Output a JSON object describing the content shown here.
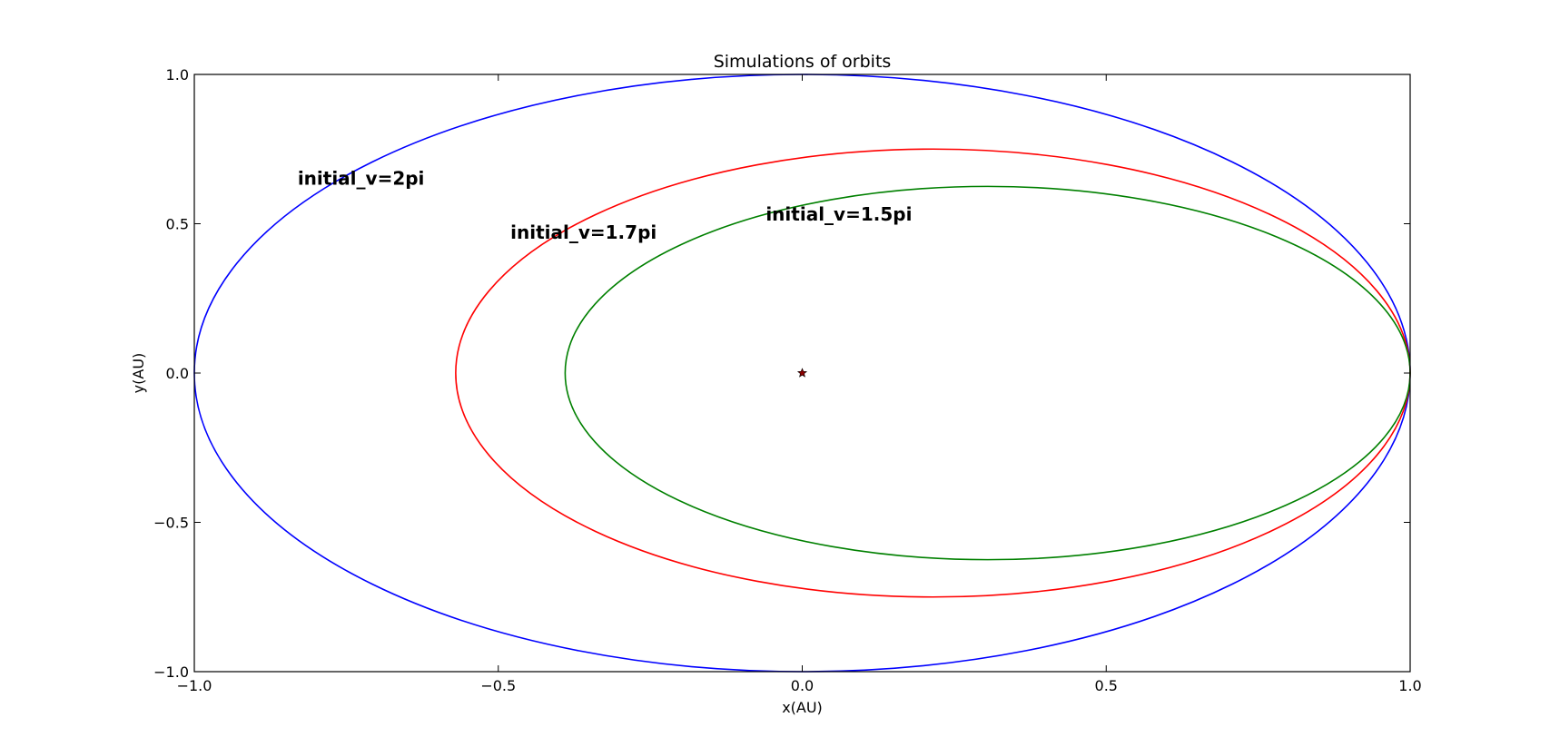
{
  "chart_data": {
    "type": "line",
    "title": "Simulations of orbits",
    "xlabel": "x(AU)",
    "ylabel": "y(AU)",
    "xlim": [
      -1.0,
      1.0
    ],
    "ylim": [
      -1.0,
      1.0
    ],
    "xticks": [
      -1.0,
      -0.5,
      0.0,
      0.5,
      1.0
    ],
    "xtick_labels": [
      "−1.0",
      "−0.5",
      "0.0",
      "0.5",
      "1.0"
    ],
    "yticks": [
      -1.0,
      -0.5,
      0.0,
      0.5,
      1.0
    ],
    "ytick_labels": [
      "−1.0",
      "−0.5",
      "0.0",
      "0.5",
      "1.0"
    ],
    "grid": false,
    "series": [
      {
        "color": "#0000ff",
        "center_x": 0.0,
        "center_y": 0.0,
        "semi_axis_x": 1.0,
        "semi_axis_y": 1.0
      },
      {
        "color": "#ff0000",
        "center_x": 0.215,
        "center_y": 0.0,
        "semi_axis_x": 0.785,
        "semi_axis_y": 0.75
      },
      {
        "color": "#008000",
        "center_x": 0.305,
        "center_y": 0.0,
        "semi_axis_x": 0.695,
        "semi_axis_y": 0.625
      }
    ],
    "marker": {
      "x": 0.0,
      "y": 0.0,
      "symbol": "star",
      "color": "#8b0000"
    },
    "annotations": [
      {
        "text": "initial_v=2pi",
        "x": -0.83,
        "y": 0.63
      },
      {
        "text": "initial_v=1.7pi",
        "x": -0.48,
        "y": 0.45
      },
      {
        "text": "initial_v=1.5pi",
        "x": -0.06,
        "y": 0.51
      }
    ]
  }
}
